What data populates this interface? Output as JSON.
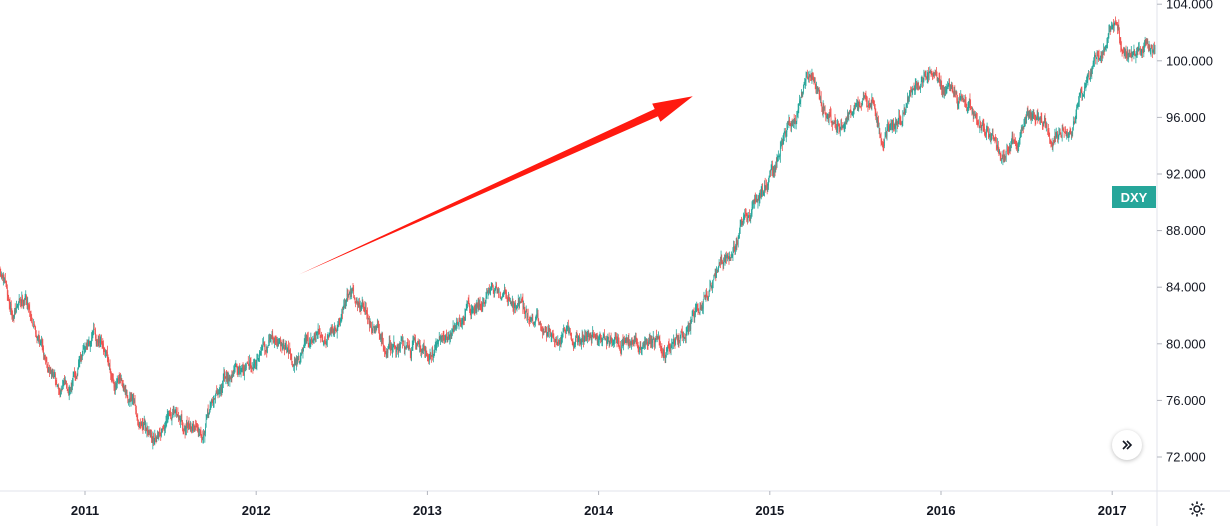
{
  "chart_data": {
    "type": "candlestick",
    "symbol": "DXY",
    "x_ticks": [
      "2011",
      "2012",
      "2013",
      "2014",
      "2015",
      "2016",
      "2017"
    ],
    "y_ticks": [
      "72.000",
      "76.000",
      "80.000",
      "84.000",
      "88.000",
      "92.000",
      "96.000",
      "100.000",
      "104.000"
    ],
    "ylim": [
      70.5,
      104.5
    ],
    "xlim": [
      2010.5,
      2017.25
    ],
    "grid": false,
    "colors": {
      "up": "#26a69a",
      "down": "#ef5350",
      "arrow": "#ff1a10",
      "badge": "#26a69a"
    },
    "annotation": {
      "type": "arrow",
      "direction": "up-right",
      "from": [
        2012.25,
        84.9
      ],
      "to": [
        2014.55,
        97.5
      ]
    },
    "anchors": [
      [
        2010.5,
        85.0
      ],
      [
        2010.58,
        82.0
      ],
      [
        2010.65,
        83.5
      ],
      [
        2010.75,
        80.0
      ],
      [
        2010.85,
        76.5
      ],
      [
        2010.95,
        78.0
      ],
      [
        2011.0,
        79.5
      ],
      [
        2011.05,
        81.0
      ],
      [
        2011.12,
        78.5
      ],
      [
        2011.2,
        77.0
      ],
      [
        2011.3,
        75.0
      ],
      [
        2011.4,
        73.5
      ],
      [
        2011.45,
        74.5
      ],
      [
        2011.55,
        75.0
      ],
      [
        2011.6,
        74.0
      ],
      [
        2011.7,
        74.5
      ],
      [
        2011.75,
        76.0
      ],
      [
        2011.85,
        78.0
      ],
      [
        2011.95,
        78.5
      ],
      [
        2012.05,
        80.0
      ],
      [
        2012.1,
        80.5
      ],
      [
        2012.2,
        79.0
      ],
      [
        2012.3,
        79.5
      ],
      [
        2012.4,
        80.5
      ],
      [
        2012.5,
        82.5
      ],
      [
        2012.55,
        84.0
      ],
      [
        2012.65,
        82.0
      ],
      [
        2012.75,
        79.5
      ],
      [
        2012.85,
        80.0
      ],
      [
        2012.95,
        79.8
      ],
      [
        2013.05,
        79.5
      ],
      [
        2013.15,
        81.0
      ],
      [
        2013.25,
        82.5
      ],
      [
        2013.35,
        83.5
      ],
      [
        2013.45,
        84.0
      ],
      [
        2013.5,
        83.0
      ],
      [
        2013.55,
        82.5
      ],
      [
        2013.6,
        81.5
      ],
      [
        2013.7,
        81.0
      ],
      [
        2013.8,
        80.5
      ],
      [
        2013.9,
        80.0
      ],
      [
        2014.0,
        80.5
      ],
      [
        2014.1,
        80.2
      ],
      [
        2014.2,
        80.0
      ],
      [
        2014.3,
        79.7
      ],
      [
        2014.4,
        80.0
      ],
      [
        2014.5,
        80.5
      ],
      [
        2014.55,
        81.5
      ],
      [
        2014.65,
        84.0
      ],
      [
        2014.75,
        86.5
      ],
      [
        2014.85,
        88.5
      ],
      [
        2015.0,
        92.0
      ],
      [
        2015.1,
        95.0
      ],
      [
        2015.2,
        97.5
      ],
      [
        2015.25,
        99.5
      ],
      [
        2015.32,
        97.0
      ],
      [
        2015.4,
        95.0
      ],
      [
        2015.5,
        96.5
      ],
      [
        2015.6,
        97.5
      ],
      [
        2015.65,
        94.5
      ],
      [
        2015.75,
        96.0
      ],
      [
        2015.85,
        98.0
      ],
      [
        2015.92,
        99.5
      ],
      [
        2016.0,
        99.0
      ],
      [
        2016.1,
        97.0
      ],
      [
        2016.2,
        96.0
      ],
      [
        2016.3,
        94.0
      ],
      [
        2016.35,
        93.5
      ],
      [
        2016.4,
        94.5
      ],
      [
        2016.5,
        95.5
      ],
      [
        2016.55,
        96.0
      ],
      [
        2016.65,
        95.0
      ],
      [
        2016.75,
        95.5
      ],
      [
        2016.8,
        96.5
      ],
      [
        2016.87,
        98.5
      ],
      [
        2016.92,
        100.5
      ],
      [
        2017.0,
        102.5
      ],
      [
        2017.05,
        101.0
      ],
      [
        2017.12,
        100.0
      ],
      [
        2017.2,
        101.0
      ],
      [
        2017.25,
        100.2
      ]
    ]
  },
  "ui": {
    "symbol_badge": "DXY",
    "scroll_icon": "double-chevron-right-icon",
    "settings_icon": "gear-icon"
  }
}
